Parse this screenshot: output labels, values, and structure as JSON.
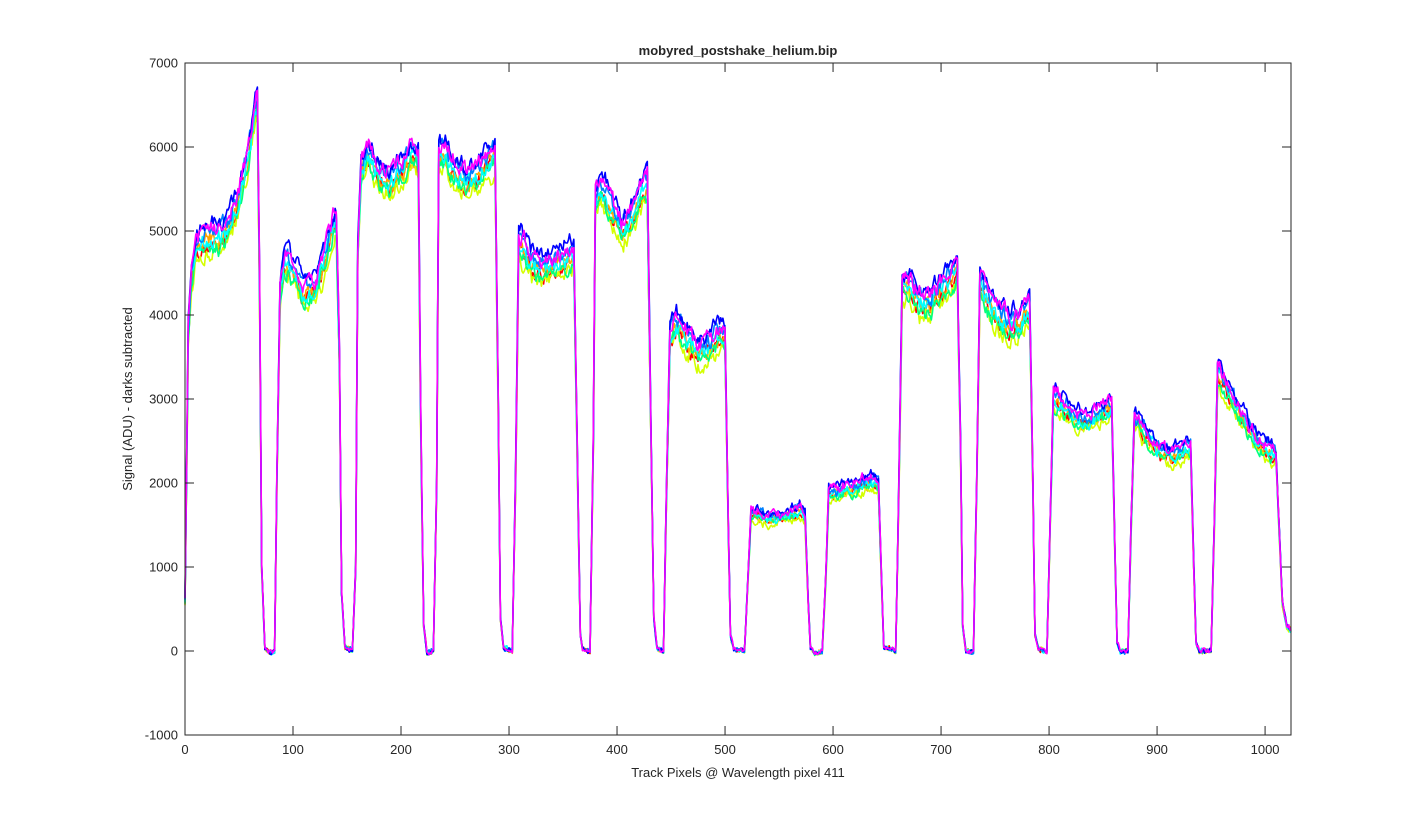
{
  "chart_data": {
    "type": "line",
    "title": "mobyred_postshake_helium.bip",
    "xlabel": "Track Pixels @ Wavelength pixel 411",
    "ylabel": "Signal (ADU) - darks subtracted",
    "xlim": [
      0,
      1024
    ],
    "ylim": [
      -1000,
      7000
    ],
    "xticks": [
      0,
      100,
      200,
      300,
      400,
      500,
      600,
      700,
      800,
      900,
      1000
    ],
    "yticks": [
      -1000,
      0,
      1000,
      2000,
      3000,
      4000,
      5000,
      6000,
      7000
    ],
    "grid": false,
    "legend": "none",
    "series_count": 8,
    "series_colors": [
      "#ff0000",
      "#ffa500",
      "#d4ff00",
      "#00ff80",
      "#00ffff",
      "#0080ff",
      "#0000ff",
      "#ff00ff"
    ],
    "bundle_profile": [
      [
        0,
        600
      ],
      [
        3,
        3800
      ],
      [
        6,
        4500
      ],
      [
        10,
        4850
      ],
      [
        20,
        4950
      ],
      [
        30,
        4950
      ],
      [
        40,
        5050
      ],
      [
        50,
        5450
      ],
      [
        58,
        5900
      ],
      [
        64,
        6400
      ],
      [
        67,
        6600
      ],
      [
        69,
        4500
      ],
      [
        71,
        1000
      ],
      [
        74,
        30
      ],
      [
        80,
        -20
      ],
      [
        83,
        0
      ],
      [
        85,
        2000
      ],
      [
        88,
        4300
      ],
      [
        92,
        4700
      ],
      [
        100,
        4550
      ],
      [
        110,
        4300
      ],
      [
        120,
        4350
      ],
      [
        130,
        4750
      ],
      [
        137,
        5100
      ],
      [
        140,
        5150
      ],
      [
        143,
        3500
      ],
      [
        145,
        700
      ],
      [
        148,
        50
      ],
      [
        155,
        0
      ],
      [
        158,
        1000
      ],
      [
        160,
        4800
      ],
      [
        163,
        5800
      ],
      [
        170,
        5950
      ],
      [
        180,
        5700
      ],
      [
        190,
        5600
      ],
      [
        200,
        5800
      ],
      [
        210,
        5950
      ],
      [
        216,
        5900
      ],
      [
        218,
        3000
      ],
      [
        221,
        300
      ],
      [
        224,
        -20
      ],
      [
        230,
        0
      ],
      [
        233,
        2000
      ],
      [
        235,
        5900
      ],
      [
        240,
        5950
      ],
      [
        250,
        5750
      ],
      [
        260,
        5650
      ],
      [
        270,
        5700
      ],
      [
        280,
        5850
      ],
      [
        287,
        5950
      ],
      [
        290,
        3000
      ],
      [
        292,
        400
      ],
      [
        295,
        30
      ],
      [
        303,
        0
      ],
      [
        306,
        2000
      ],
      [
        309,
        4900
      ],
      [
        315,
        4800
      ],
      [
        320,
        4650
      ],
      [
        330,
        4600
      ],
      [
        340,
        4650
      ],
      [
        350,
        4700
      ],
      [
        360,
        4750
      ],
      [
        363,
        2500
      ],
      [
        366,
        200
      ],
      [
        368,
        30
      ],
      [
        375,
        0
      ],
      [
        378,
        2500
      ],
      [
        380,
        5400
      ],
      [
        385,
        5550
      ],
      [
        395,
        5300
      ],
      [
        405,
        5050
      ],
      [
        415,
        5250
      ],
      [
        425,
        5550
      ],
      [
        428,
        5600
      ],
      [
        431,
        3000
      ],
      [
        434,
        400
      ],
      [
        437,
        30
      ],
      [
        443,
        0
      ],
      [
        446,
        2000
      ],
      [
        449,
        3800
      ],
      [
        455,
        3950
      ],
      [
        465,
        3750
      ],
      [
        475,
        3600
      ],
      [
        485,
        3650
      ],
      [
        495,
        3800
      ],
      [
        500,
        3750
      ],
      [
        503,
        1500
      ],
      [
        505,
        200
      ],
      [
        508,
        30
      ],
      [
        518,
        0
      ],
      [
        521,
        800
      ],
      [
        524,
        1650
      ],
      [
        530,
        1650
      ],
      [
        540,
        1600
      ],
      [
        550,
        1600
      ],
      [
        560,
        1650
      ],
      [
        570,
        1700
      ],
      [
        574,
        1650
      ],
      [
        577,
        600
      ],
      [
        579,
        50
      ],
      [
        583,
        -30
      ],
      [
        590,
        0
      ],
      [
        593,
        800
      ],
      [
        596,
        1900
      ],
      [
        605,
        1900
      ],
      [
        615,
        1950
      ],
      [
        625,
        2000
      ],
      [
        635,
        2050
      ],
      [
        642,
        2000
      ],
      [
        645,
        800
      ],
      [
        647,
        50
      ],
      [
        651,
        30
      ],
      [
        658,
        0
      ],
      [
        661,
        2000
      ],
      [
        664,
        4400
      ],
      [
        670,
        4400
      ],
      [
        680,
        4200
      ],
      [
        690,
        4200
      ],
      [
        700,
        4350
      ],
      [
        710,
        4500
      ],
      [
        715,
        4600
      ],
      [
        718,
        2500
      ],
      [
        720,
        300
      ],
      [
        723,
        0
      ],
      [
        730,
        0
      ],
      [
        733,
        2000
      ],
      [
        736,
        4450
      ],
      [
        745,
        4150
      ],
      [
        755,
        4000
      ],
      [
        765,
        3900
      ],
      [
        775,
        4000
      ],
      [
        782,
        4100
      ],
      [
        785,
        2000
      ],
      [
        787,
        200
      ],
      [
        790,
        30
      ],
      [
        798,
        0
      ],
      [
        801,
        1500
      ],
      [
        804,
        3050
      ],
      [
        810,
        3000
      ],
      [
        820,
        2850
      ],
      [
        830,
        2750
      ],
      [
        840,
        2800
      ],
      [
        850,
        2900
      ],
      [
        858,
        2950
      ],
      [
        861,
        1200
      ],
      [
        863,
        100
      ],
      [
        866,
        0
      ],
      [
        873,
        0
      ],
      [
        876,
        1500
      ],
      [
        879,
        2800
      ],
      [
        885,
        2700
      ],
      [
        895,
        2500
      ],
      [
        905,
        2400
      ],
      [
        915,
        2350
      ],
      [
        925,
        2400
      ],
      [
        931,
        2450
      ],
      [
        934,
        1000
      ],
      [
        936,
        100
      ],
      [
        939,
        0
      ],
      [
        950,
        0
      ],
      [
        953,
        1500
      ],
      [
        956,
        3350
      ],
      [
        965,
        3150
      ],
      [
        975,
        2900
      ],
      [
        985,
        2650
      ],
      [
        995,
        2500
      ],
      [
        1005,
        2400
      ],
      [
        1010,
        2350
      ],
      [
        1013,
        1500
      ],
      [
        1016,
        600
      ],
      [
        1020,
        300
      ],
      [
        1024,
        250
      ]
    ]
  }
}
